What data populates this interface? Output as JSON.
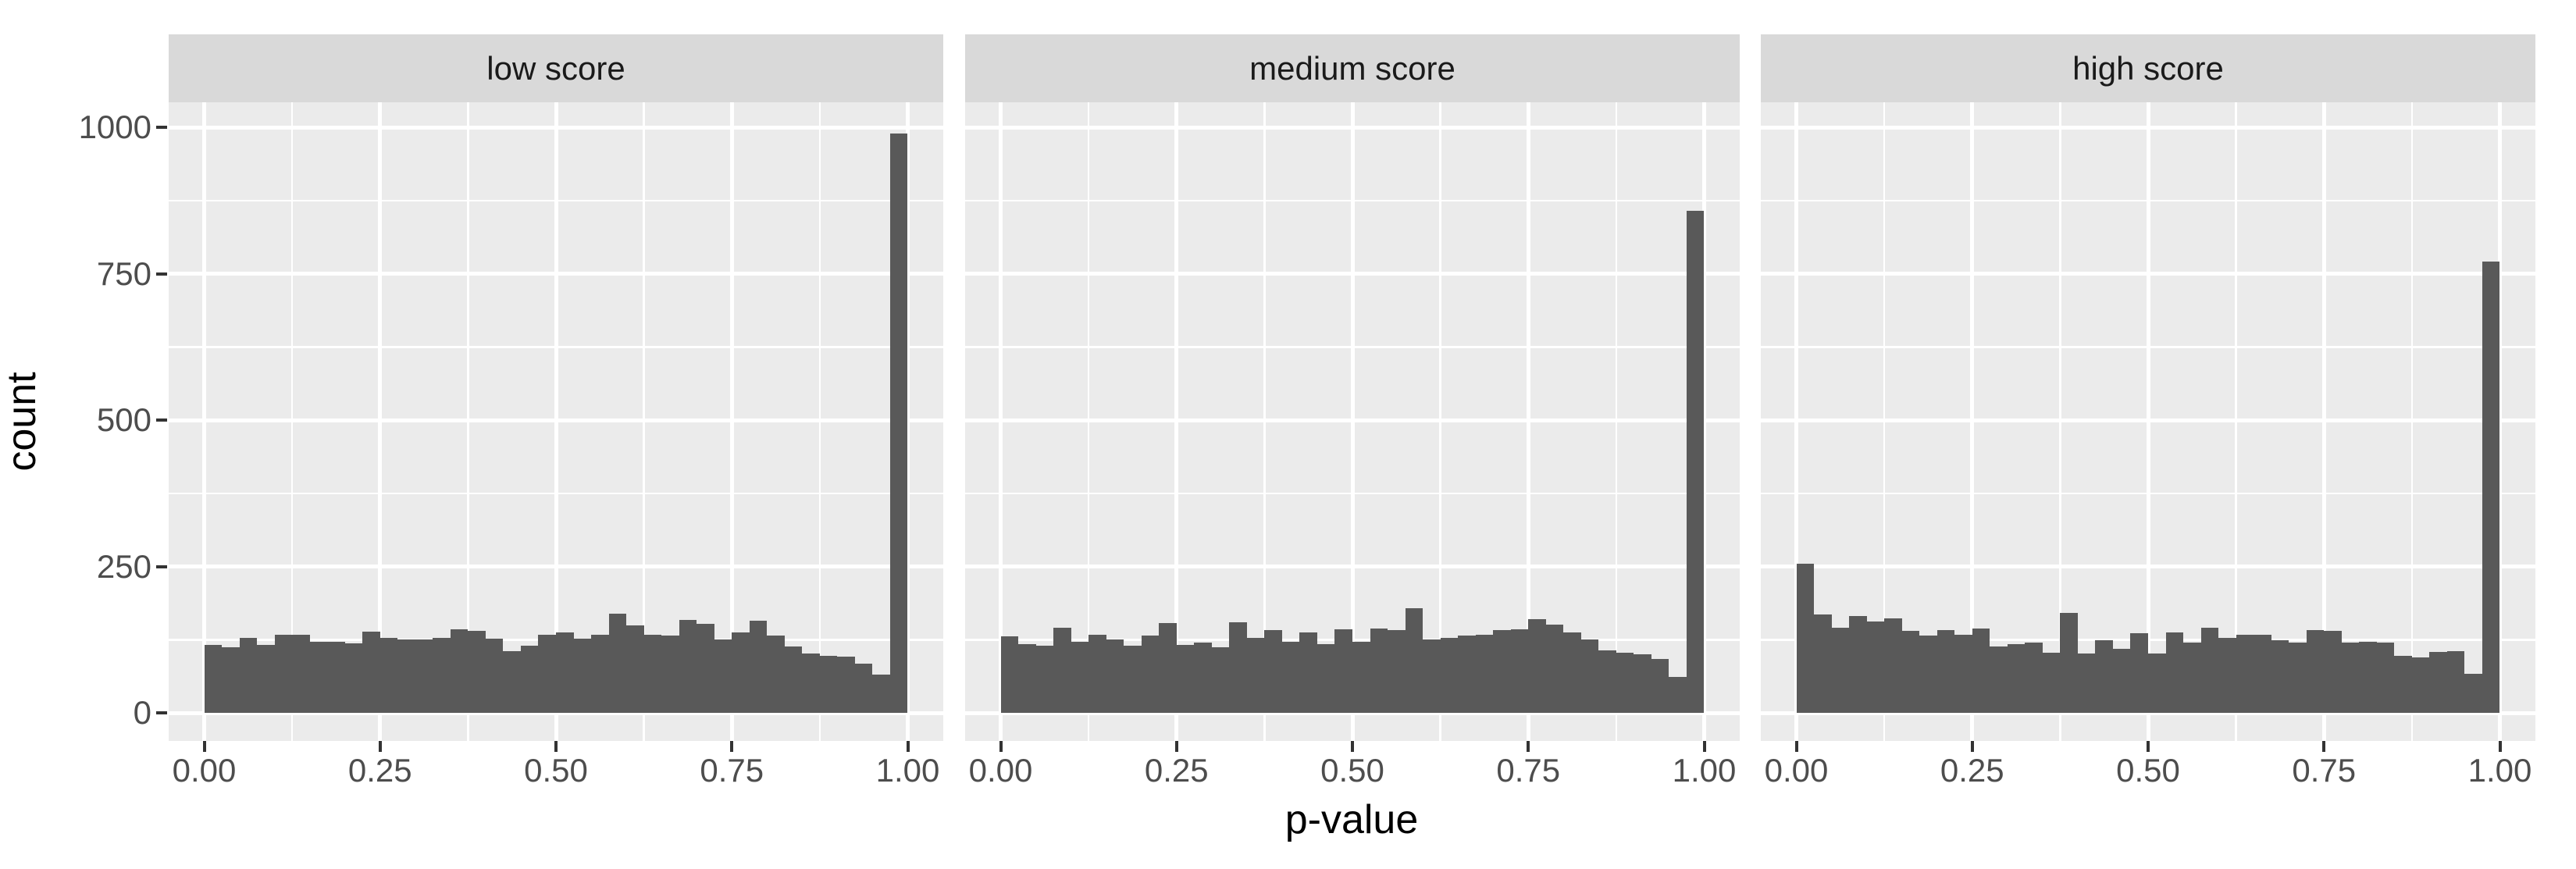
{
  "colors": {
    "figure_bg": "#FFFFFF",
    "panel_bg": "#EBEBEB",
    "strip_bg": "#D9D9D9",
    "strip_text": "#1A1A1A",
    "bar_fill": "#595959",
    "gridline": "#FFFFFF",
    "tick_mark": "#333333",
    "tick_label": "#4D4D4D",
    "axis_title": "#000000"
  },
  "axes": {
    "x_title": "p-value",
    "y_title": "count",
    "x_tick_labels": [
      "0.00",
      "0.25",
      "0.50",
      "0.75",
      "1.00"
    ],
    "x_tick_values": [
      0,
      0.25,
      0.5,
      0.75,
      1.0
    ],
    "x_minor_values": [
      0.125,
      0.375,
      0.625,
      0.875
    ],
    "y_tick_labels": [
      "0",
      "250",
      "500",
      "750",
      "1000"
    ],
    "y_tick_values": [
      0,
      250,
      500,
      750,
      1000
    ],
    "y_minor_values": [
      125,
      375,
      625,
      875
    ]
  },
  "chart_data": {
    "type": "bar",
    "subtype": "faceted-histogram",
    "xlabel": "p-value",
    "ylabel": "count",
    "x_range": [
      0,
      1
    ],
    "ylim": [
      0,
      1000
    ],
    "bins": 40,
    "bin_width": 0.025,
    "grid": "on",
    "facets": [
      {
        "label": "low score",
        "counts": [
          116,
          112,
          128,
          116,
          133,
          134,
          122,
          122,
          119,
          139,
          128,
          125,
          125,
          128,
          143,
          140,
          127,
          105,
          115,
          133,
          138,
          127,
          134,
          170,
          150,
          134,
          132,
          159,
          152,
          126,
          138,
          158,
          132,
          114,
          102,
          97,
          96,
          84,
          65,
          990
        ]
      },
      {
        "label": "medium score",
        "counts": [
          131,
          118,
          115,
          145,
          122,
          133,
          125,
          115,
          132,
          153,
          116,
          120,
          112,
          155,
          128,
          141,
          122,
          137,
          118,
          143,
          122,
          144,
          141,
          179,
          126,
          128,
          132,
          133,
          141,
          143,
          160,
          151,
          137,
          126,
          107,
          103,
          100,
          92,
          62,
          858
        ]
      },
      {
        "label": "high score",
        "counts": [
          255,
          168,
          146,
          165,
          156,
          162,
          140,
          132,
          142,
          134,
          144,
          113,
          117,
          120,
          103,
          171,
          101,
          124,
          110,
          136,
          101,
          138,
          120,
          146,
          128,
          134,
          134,
          124,
          120,
          141,
          140,
          120,
          122,
          120,
          98,
          95,
          104,
          105,
          67,
          771
        ]
      }
    ]
  }
}
